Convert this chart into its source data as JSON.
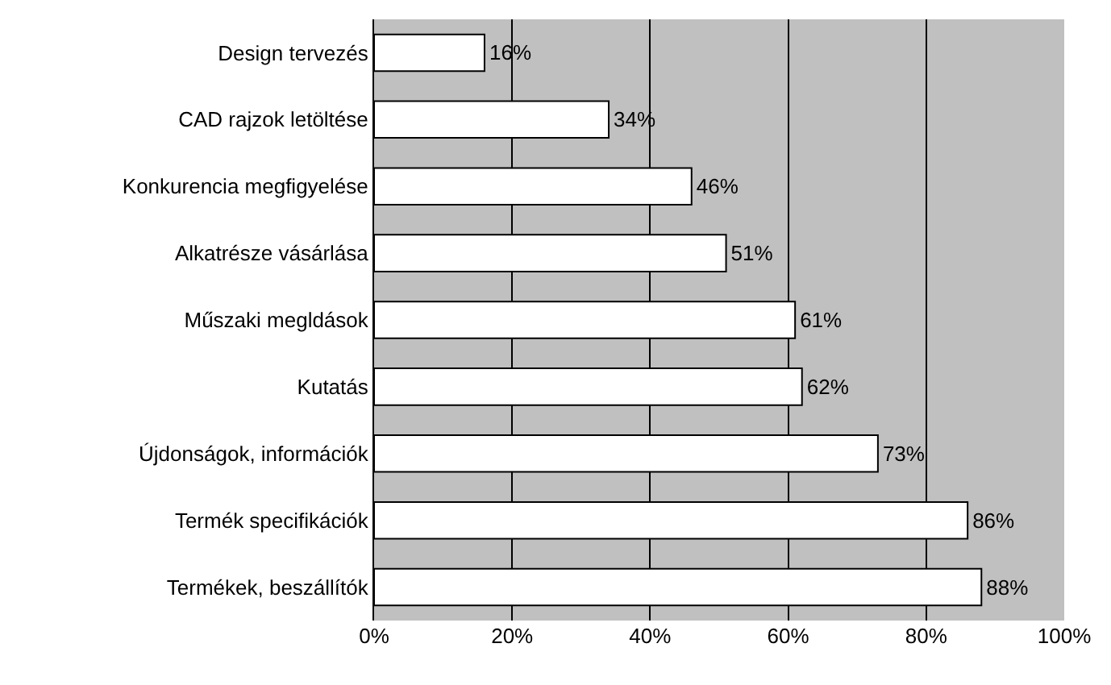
{
  "chart_data": {
    "type": "bar",
    "orientation": "horizontal",
    "categories": [
      "Design tervezés",
      "CAD rajzok letöltése",
      "Konkurencia megfigyelése",
      "Alkatrésze vásárlása",
      "Műszaki megldások",
      "Kutatás",
      "Újdonságok, információk",
      "Termék specifikációk",
      "Termékek, beszállítók"
    ],
    "values": [
      16,
      34,
      46,
      51,
      61,
      62,
      73,
      86,
      88
    ],
    "value_labels": [
      "16%",
      "34%",
      "46%",
      "51%",
      "61%",
      "62%",
      "73%",
      "86%",
      "88%"
    ],
    "color": "#ffffff",
    "xlim": [
      0,
      100
    ],
    "xticks": [
      {
        "value": 0,
        "label": "0%"
      },
      {
        "value": 20,
        "label": "20%"
      },
      {
        "value": 40,
        "label": "40%"
      },
      {
        "value": 60,
        "label": "60%"
      },
      {
        "value": 80,
        "label": "80%"
      },
      {
        "value": 100,
        "label": "100%"
      }
    ],
    "grid": "x"
  }
}
